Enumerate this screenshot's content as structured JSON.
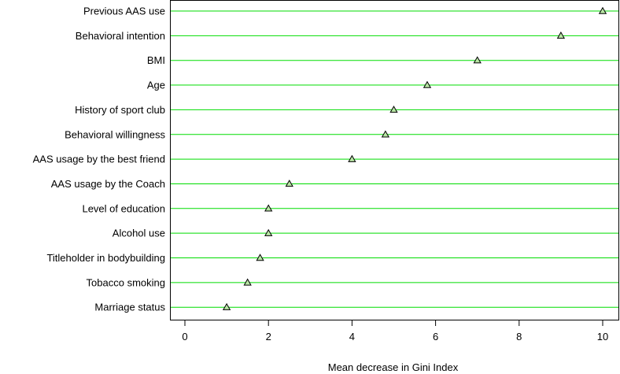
{
  "chart_data": {
    "type": "scatter",
    "title": "",
    "xlabel": "Mean decrease in Gini Index",
    "ylabel": "",
    "xlim": [
      -0.35,
      10.5
    ],
    "xticks": [
      "0",
      "2",
      "4",
      "6",
      "8",
      "10"
    ],
    "grid": "horizontal lines at each category",
    "categories": [
      "Previous AAS use",
      "Behavioral intention",
      "BMI",
      "Age",
      "History of sport club",
      "Behavioral willingness",
      "AAS usage by the best friend",
      "AAS usage by the Coach",
      "Level of education",
      "Alcohol use",
      "Titleholder in bodybuilding",
      "Tobacco smoking",
      "Marriage status"
    ],
    "values": [
      10,
      9,
      7,
      5.8,
      5,
      4.8,
      4,
      2.5,
      2,
      2,
      1.8,
      1.5,
      1
    ],
    "colors": {
      "gridline": "#00dd00",
      "marker_stroke": "#000000",
      "marker_fill": "#b9e6a5",
      "axis": "#000000"
    },
    "marker": "triangle-open"
  }
}
